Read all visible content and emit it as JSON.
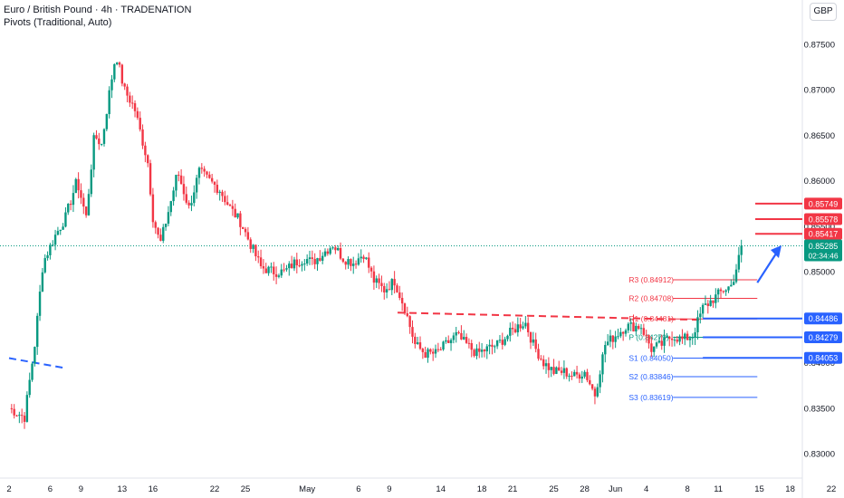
{
  "header": {
    "title": "Euro / British Pound · 4h · TRADENATION",
    "subtitle": "Pivots (Traditional, Auto)",
    "currency": "GBP"
  },
  "chart_data": {
    "type": "candlestick",
    "y_ticks": [
      "0.87500",
      "0.87000",
      "0.86500",
      "0.86000",
      "0.85500",
      "0.85000",
      "0.84500",
      "0.84000",
      "0.83500",
      "0.83000"
    ],
    "ylim": [
      0.828,
      0.8775
    ],
    "x_ticks": [
      {
        "label": "2",
        "x": 0.0
      },
      {
        "label": "6",
        "x": 4.0
      },
      {
        "label": "9",
        "x": 7.0
      },
      {
        "label": "13",
        "x": 11.0
      },
      {
        "label": "16",
        "x": 14.0
      },
      {
        "label": "22",
        "x": 20.0
      },
      {
        "label": "25",
        "x": 23.0
      },
      {
        "label": "May",
        "x": 29.0
      },
      {
        "label": "6",
        "x": 34.0
      },
      {
        "label": "9",
        "x": 37.0
      },
      {
        "label": "14",
        "x": 42.0
      },
      {
        "label": "18",
        "x": 46.0
      },
      {
        "label": "21",
        "x": 49.0
      },
      {
        "label": "25",
        "x": 53.0
      },
      {
        "label": "28",
        "x": 56.0
      },
      {
        "label": "Jun",
        "x": 59.0
      },
      {
        "label": "4",
        "x": 62.0
      },
      {
        "label": "8",
        "x": 66.0
      },
      {
        "label": "11",
        "x": 69.0
      },
      {
        "label": "15",
        "x": 73.0
      },
      {
        "label": "18",
        "x": 76.0
      },
      {
        "label": "22",
        "x": 80.0
      }
    ],
    "xlim": [
      0.0,
      80.0
    ],
    "price_path": [
      [
        0.0,
        0.835
      ],
      [
        1.5,
        0.834
      ],
      [
        2.5,
        0.842
      ],
      [
        3.3,
        0.851
      ],
      [
        4.5,
        0.854
      ],
      [
        5.5,
        0.856
      ],
      [
        6.6,
        0.86
      ],
      [
        7.5,
        0.856
      ],
      [
        8.3,
        0.865
      ],
      [
        9.0,
        0.864
      ],
      [
        9.8,
        0.87
      ],
      [
        10.4,
        0.874
      ],
      [
        11.2,
        0.87
      ],
      [
        12.2,
        0.868
      ],
      [
        13.5,
        0.862
      ],
      [
        14.0,
        0.856
      ],
      [
        14.7,
        0.853
      ],
      [
        15.8,
        0.858
      ],
      [
        16.4,
        0.861
      ],
      [
        17.5,
        0.857
      ],
      [
        18.5,
        0.861
      ],
      [
        19.5,
        0.86
      ],
      [
        20.5,
        0.859
      ],
      [
        21.5,
        0.857
      ],
      [
        22.5,
        0.8555
      ],
      [
        23.5,
        0.853
      ],
      [
        24.5,
        0.8505
      ],
      [
        25.7,
        0.85
      ],
      [
        26.8,
        0.85
      ],
      [
        27.8,
        0.851
      ],
      [
        28.8,
        0.8515
      ],
      [
        29.5,
        0.851
      ],
      [
        30.5,
        0.852
      ],
      [
        31.5,
        0.853
      ],
      [
        32.5,
        0.8515
      ],
      [
        33.5,
        0.851
      ],
      [
        34.5,
        0.852
      ],
      [
        35.5,
        0.849
      ],
      [
        36.5,
        0.848
      ],
      [
        37.5,
        0.849
      ],
      [
        38.5,
        0.846
      ],
      [
        39.5,
        0.842
      ],
      [
        40.5,
        0.841
      ],
      [
        41.5,
        0.841
      ],
      [
        42.5,
        0.842
      ],
      [
        43.5,
        0.843
      ],
      [
        44.5,
        0.842
      ],
      [
        45.5,
        0.841
      ],
      [
        46.5,
        0.8415
      ],
      [
        47.5,
        0.842
      ],
      [
        48.5,
        0.843
      ],
      [
        49.5,
        0.844
      ],
      [
        50.2,
        0.8445
      ],
      [
        51.0,
        0.842
      ],
      [
        52.0,
        0.84
      ],
      [
        53.0,
        0.839
      ],
      [
        54.0,
        0.839
      ],
      [
        55.0,
        0.8385
      ],
      [
        56.0,
        0.839
      ],
      [
        57.0,
        0.8365
      ],
      [
        58.0,
        0.842
      ],
      [
        59.0,
        0.843
      ],
      [
        60.0,
        0.844
      ],
      [
        61.5,
        0.844
      ],
      [
        62.5,
        0.8415
      ],
      [
        63.5,
        0.842
      ],
      [
        64.5,
        0.843
      ],
      [
        65.5,
        0.8425
      ],
      [
        66.5,
        0.843
      ],
      [
        67.5,
        0.846
      ],
      [
        68.5,
        0.847
      ],
      [
        69.5,
        0.848
      ],
      [
        70.3,
        0.8485
      ],
      [
        70.9,
        0.851
      ],
      [
        71.3,
        0.8528
      ]
    ],
    "current_price_line": 0.85285,
    "pivot_levels": [
      {
        "label": "R3",
        "value": "(0.84912)",
        "y": 0.84912,
        "color": "#f23645"
      },
      {
        "label": "R2",
        "value": "(0.84708)",
        "y": 0.84708,
        "color": "#f23645"
      },
      {
        "label": "R1",
        "value": "(0.84481)",
        "y": 0.84481,
        "color": "#f23645"
      },
      {
        "label": "P",
        "value": "(0.84279)",
        "y": 0.84279,
        "color": "#089981"
      },
      {
        "label": "S1",
        "value": "(0.84050)",
        "y": 0.8405,
        "color": "#2962ff"
      },
      {
        "label": "S2",
        "value": "(0.83846)",
        "y": 0.83846,
        "color": "#2962ff"
      },
      {
        "label": "S3",
        "value": "(0.83619)",
        "y": 0.83619,
        "color": "#2962ff"
      }
    ],
    "resistance_lines": [
      0.85749,
      0.85578,
      0.85417
    ],
    "support_lines": [
      0.84486,
      0.84279,
      0.84053
    ],
    "price_labels": [
      {
        "text": "0.85749",
        "y": 0.85749,
        "color": "#f23645"
      },
      {
        "text": "0.85578",
        "y": 0.85578,
        "color": "#f23645"
      },
      {
        "text": "0.85417",
        "y": 0.85417,
        "color": "#f23645"
      },
      {
        "text": "0.84486",
        "y": 0.84486,
        "color": "#2962ff"
      },
      {
        "text": "0.84279",
        "y": 0.84279,
        "color": "#2962ff"
      },
      {
        "text": "0.84053",
        "y": 0.84053,
        "color": "#2962ff"
      }
    ],
    "current_label": {
      "price": "0.85285",
      "countdown": "02:34:46",
      "color": "#089981"
    },
    "colors": {
      "up": "#089981",
      "down": "#f23645",
      "blue": "#2962ff",
      "red": "#f23645"
    }
  }
}
